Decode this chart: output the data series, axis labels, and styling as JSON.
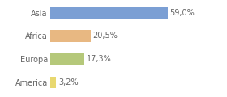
{
  "categories": [
    "Asia",
    "Africa",
    "Europa",
    "America"
  ],
  "values": [
    59.0,
    20.5,
    17.3,
    3.2
  ],
  "labels": [
    "59,0%",
    "20,5%",
    "17,3%",
    "3,2%"
  ],
  "bar_colors": [
    "#7b9fd4",
    "#e8b882",
    "#b5c87a",
    "#e8d870"
  ],
  "background_color": "#ffffff",
  "xlim": [
    0,
    75
  ],
  "bar_height": 0.5,
  "label_fontsize": 7.0,
  "tick_fontsize": 7.0,
  "vline_x": 68,
  "vline_color": "#cccccc"
}
